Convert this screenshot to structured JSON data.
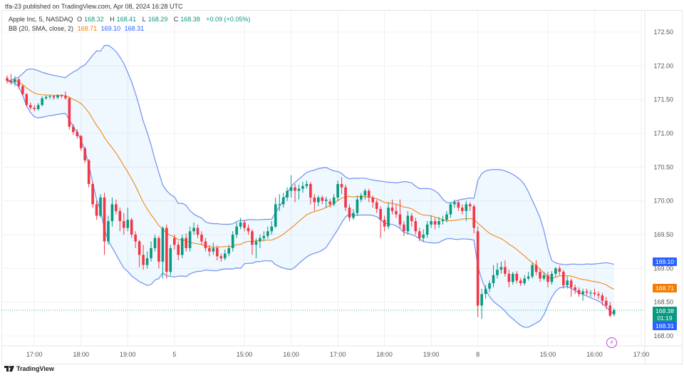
{
  "publisher": "tfa-23 published on TradingView.com, Apr 08, 2024 16:28 UTC",
  "legend": {
    "symbol": "Apple Inc, 5, NASDAQ",
    "o_label": "O",
    "o": "168.32",
    "h_label": "H",
    "h": "168.41",
    "l_label": "L",
    "l": "168.29",
    "c_label": "C",
    "c": "168.38",
    "change": "+0.09 (+0.05%)",
    "bb_label": "BB (20, SMA, close, 2)",
    "bb_basis": "168.71",
    "bb_upper": "169.10",
    "bb_lower": "168.31"
  },
  "price_tags": {
    "upper": "169.10",
    "basis": "168.71",
    "last": "168.38",
    "countdown": "01:19",
    "lower": "168.31"
  },
  "footer": {
    "brand": "TradingView"
  },
  "colors": {
    "up": "#089981",
    "down": "#f23645",
    "basis": "#f57c00",
    "band": "#2962ff",
    "last": "#089981"
  },
  "chart_data": {
    "type": "candlestick",
    "interval": "5",
    "indicator": {
      "name": "BB",
      "length": 20,
      "type": "SMA",
      "source": "close",
      "mult": 2
    },
    "ylim": [
      168.0,
      172.5
    ],
    "yticks": [
      "168.00",
      "168.50",
      "169.00",
      "169.50",
      "170.00",
      "170.50",
      "171.00",
      "171.50",
      "172.00",
      "172.50"
    ],
    "xticks": [
      {
        "label": "17:00",
        "bar": 7
      },
      {
        "label": "18:00",
        "bar": 19
      },
      {
        "label": "19:00",
        "bar": 31
      },
      {
        "label": "5",
        "bar": 43
      },
      {
        "label": "15:00",
        "bar": 61
      },
      {
        "label": "16:00",
        "bar": 73
      },
      {
        "label": "17:00",
        "bar": 85
      },
      {
        "label": "18:00",
        "bar": 97
      },
      {
        "label": "19:00",
        "bar": 109
      },
      {
        "label": "8",
        "bar": 121
      },
      {
        "label": "15:00",
        "bar": 139
      },
      {
        "label": "16:00",
        "bar": 151
      },
      {
        "label": "17:00",
        "bar": 163
      }
    ],
    "last_price": 168.38,
    "grid": true,
    "candles_ohlc": [
      [
        171.82,
        171.86,
        171.74,
        171.78
      ],
      [
        171.78,
        171.88,
        171.72,
        171.76
      ],
      [
        171.76,
        171.85,
        171.7,
        171.8
      ],
      [
        171.8,
        171.82,
        171.66,
        171.7
      ],
      [
        171.7,
        171.72,
        171.55,
        171.58
      ],
      [
        171.58,
        171.6,
        171.4,
        171.42
      ],
      [
        171.42,
        171.46,
        171.35,
        171.38
      ],
      [
        171.38,
        171.42,
        171.33,
        171.36
      ],
      [
        171.36,
        171.45,
        171.34,
        171.42
      ],
      [
        171.42,
        171.55,
        171.4,
        171.52
      ],
      [
        171.52,
        171.56,
        171.5,
        171.54
      ],
      [
        171.54,
        171.57,
        171.51,
        171.55
      ],
      [
        171.55,
        171.57,
        171.5,
        171.53
      ],
      [
        171.53,
        171.58,
        171.51,
        171.56
      ],
      [
        171.56,
        171.58,
        171.52,
        171.55
      ],
      [
        171.55,
        171.62,
        171.5,
        171.52
      ],
      [
        171.52,
        171.54,
        171.06,
        171.1
      ],
      [
        171.1,
        171.14,
        170.98,
        171.02
      ],
      [
        171.02,
        171.06,
        170.92,
        170.96
      ],
      [
        170.96,
        170.98,
        170.74,
        170.78
      ],
      [
        170.78,
        170.8,
        170.56,
        170.6
      ],
      [
        170.6,
        170.62,
        170.2,
        170.25
      ],
      [
        170.25,
        170.28,
        169.9,
        169.95
      ],
      [
        169.95,
        170.0,
        169.72,
        169.78
      ],
      [
        169.78,
        170.1,
        169.75,
        170.05
      ],
      [
        170.05,
        170.12,
        169.2,
        169.4
      ],
      [
        169.4,
        169.78,
        169.35,
        169.7
      ],
      [
        169.7,
        170.05,
        169.62,
        169.95
      ],
      [
        169.95,
        170.02,
        169.8,
        169.85
      ],
      [
        169.85,
        169.9,
        169.55,
        169.7
      ],
      [
        169.7,
        169.82,
        169.5,
        169.6
      ],
      [
        169.6,
        169.9,
        169.55,
        169.72
      ],
      [
        169.72,
        169.75,
        169.45,
        169.5
      ],
      [
        169.5,
        169.55,
        169.3,
        169.4
      ],
      [
        169.4,
        169.42,
        169.02,
        169.2
      ],
      [
        169.2,
        169.35,
        168.98,
        169.05
      ],
      [
        169.05,
        169.25,
        169.0,
        169.15
      ],
      [
        169.15,
        169.4,
        169.1,
        169.3
      ],
      [
        169.3,
        169.5,
        169.25,
        169.45
      ],
      [
        169.45,
        169.48,
        169.0,
        169.1
      ],
      [
        169.1,
        169.62,
        168.85,
        169.6
      ],
      [
        169.6,
        169.65,
        168.85,
        168.95
      ],
      [
        168.95,
        169.35,
        168.9,
        169.3
      ],
      [
        169.45,
        169.5,
        169.28,
        169.35
      ],
      [
        169.35,
        169.4,
        169.12,
        169.2
      ],
      [
        169.2,
        169.5,
        169.15,
        169.45
      ],
      [
        169.45,
        169.52,
        169.25,
        169.3
      ],
      [
        169.3,
        169.62,
        169.25,
        169.55
      ],
      [
        169.55,
        169.68,
        169.5,
        169.6
      ],
      [
        169.6,
        169.65,
        169.45,
        169.5
      ],
      [
        169.5,
        169.55,
        169.35,
        169.4
      ],
      [
        169.4,
        169.45,
        169.25,
        169.3
      ],
      [
        169.3,
        169.35,
        169.18,
        169.25
      ],
      [
        169.25,
        169.38,
        169.2,
        169.3
      ],
      [
        169.3,
        169.34,
        169.12,
        169.18
      ],
      [
        169.18,
        169.22,
        169.1,
        169.15
      ],
      [
        169.15,
        169.28,
        169.12,
        169.22
      ],
      [
        169.22,
        169.35,
        169.18,
        169.3
      ],
      [
        169.3,
        169.55,
        169.25,
        169.5
      ],
      [
        169.5,
        169.68,
        169.45,
        169.62
      ],
      [
        169.62,
        169.75,
        169.58,
        169.68
      ],
      [
        169.68,
        169.72,
        169.55,
        169.6
      ],
      [
        169.6,
        169.65,
        169.5,
        169.55
      ],
      [
        169.55,
        169.58,
        169.2,
        169.35
      ],
      [
        169.35,
        169.45,
        169.15,
        169.4
      ],
      [
        169.4,
        169.5,
        169.3,
        169.45
      ],
      [
        169.45,
        169.55,
        169.4,
        169.48
      ],
      [
        169.48,
        169.62,
        169.44,
        169.55
      ],
      [
        169.55,
        169.7,
        169.5,
        169.62
      ],
      [
        169.62,
        170.05,
        169.6,
        169.95
      ],
      [
        169.95,
        170.1,
        169.85,
        169.95
      ],
      [
        169.95,
        170.12,
        169.9,
        170.05
      ],
      [
        170.05,
        170.2,
        170.0,
        170.15
      ],
      [
        170.15,
        170.38,
        170.05,
        170.2
      ],
      [
        170.2,
        170.25,
        169.98,
        170.15
      ],
      [
        170.15,
        170.24,
        170.02,
        170.18
      ],
      [
        170.18,
        170.28,
        170.12,
        170.22
      ],
      [
        170.22,
        170.3,
        170.18,
        170.25
      ],
      [
        170.25,
        170.28,
        169.95,
        170.05
      ],
      [
        170.05,
        170.1,
        169.85,
        169.98
      ],
      [
        169.98,
        170.08,
        169.92,
        170.05
      ],
      [
        170.05,
        170.08,
        169.95,
        170.0
      ],
      [
        170.0,
        170.06,
        169.9,
        170.02
      ],
      [
        169.99,
        170.03,
        169.9,
        169.95
      ],
      [
        169.95,
        170.1,
        169.92,
        170.05
      ],
      [
        170.05,
        170.3,
        170.0,
        170.25
      ],
      [
        170.25,
        170.35,
        170.1,
        170.2
      ],
      [
        170.2,
        170.24,
        169.85,
        169.9
      ],
      [
        169.9,
        169.95,
        169.7,
        169.75
      ],
      [
        169.75,
        169.88,
        169.72,
        169.82
      ],
      [
        169.82,
        170.08,
        169.78,
        170.02
      ],
      [
        170.02,
        170.12,
        169.98,
        170.08
      ],
      [
        170.08,
        170.18,
        170.02,
        170.15
      ],
      [
        170.15,
        170.18,
        169.98,
        170.05
      ],
      [
        170.05,
        170.08,
        169.9,
        169.98
      ],
      [
        169.98,
        170.02,
        169.82,
        169.88
      ],
      [
        169.88,
        169.92,
        169.45,
        169.72
      ],
      [
        169.72,
        169.78,
        169.55,
        169.62
      ],
      [
        169.62,
        169.98,
        169.58,
        169.9
      ],
      [
        169.9,
        170.02,
        169.8,
        169.85
      ],
      [
        169.85,
        169.95,
        169.75,
        169.8
      ],
      [
        169.8,
        170.02,
        169.6,
        169.65
      ],
      [
        169.65,
        169.7,
        169.48,
        169.55
      ],
      [
        169.55,
        169.85,
        169.5,
        169.78
      ],
      [
        169.78,
        169.82,
        169.62,
        169.7
      ],
      [
        169.7,
        169.75,
        169.5,
        169.55
      ],
      [
        169.55,
        169.6,
        169.4,
        169.45
      ],
      [
        169.45,
        169.58,
        169.4,
        169.5
      ],
      [
        169.5,
        169.7,
        169.45,
        169.65
      ],
      [
        169.65,
        169.78,
        169.6,
        169.7
      ],
      [
        169.7,
        169.75,
        169.58,
        169.65
      ],
      [
        169.65,
        169.76,
        169.6,
        169.7
      ],
      [
        169.7,
        169.78,
        169.65,
        169.72
      ],
      [
        169.72,
        169.85,
        169.68,
        169.8
      ],
      [
        169.8,
        169.98,
        169.75,
        169.95
      ],
      [
        169.95,
        170.02,
        169.9,
        169.98
      ],
      [
        169.98,
        170.0,
        169.85,
        169.9
      ],
      [
        169.9,
        169.95,
        169.8,
        169.85
      ],
      [
        169.85,
        170.0,
        169.7,
        169.95
      ],
      [
        169.95,
        169.98,
        169.85,
        169.92
      ],
      [
        169.92,
        169.95,
        169.52,
        169.6
      ],
      [
        169.55,
        169.62,
        168.28,
        168.45
      ],
      [
        168.45,
        168.7,
        168.25,
        168.62
      ],
      [
        168.62,
        168.75,
        168.55,
        168.7
      ],
      [
        168.7,
        168.82,
        168.65,
        168.78
      ],
      [
        168.78,
        169.05,
        168.72,
        168.9
      ],
      [
        168.9,
        169.08,
        168.85,
        168.98
      ],
      [
        168.98,
        169.1,
        168.92,
        169.02
      ],
      [
        169.02,
        169.12,
        168.88,
        168.92
      ],
      [
        168.92,
        168.98,
        168.72,
        168.8
      ],
      [
        168.8,
        168.95,
        168.76,
        168.92
      ],
      [
        168.92,
        168.96,
        168.78,
        168.82
      ],
      [
        168.82,
        168.86,
        168.74,
        168.78
      ],
      [
        168.78,
        168.9,
        168.75,
        168.85
      ],
      [
        168.85,
        168.95,
        168.82,
        168.88
      ],
      [
        168.88,
        169.08,
        168.85,
        169.05
      ],
      [
        169.05,
        169.12,
        168.9,
        168.95
      ],
      [
        168.95,
        169.0,
        168.8,
        168.85
      ],
      [
        168.85,
        168.95,
        168.82,
        168.9
      ],
      [
        168.9,
        168.95,
        168.72,
        168.8
      ],
      [
        168.8,
        168.96,
        168.76,
        168.92
      ],
      [
        168.92,
        169.02,
        168.88,
        169.0
      ],
      [
        169.0,
        169.04,
        168.9,
        168.95
      ],
      [
        168.95,
        168.98,
        168.7,
        168.75
      ],
      [
        168.75,
        168.88,
        168.7,
        168.82
      ],
      [
        168.82,
        168.85,
        168.58,
        168.72
      ],
      [
        168.72,
        168.76,
        168.62,
        168.68
      ],
      [
        168.68,
        168.72,
        168.58,
        168.62
      ],
      [
        168.62,
        168.7,
        168.52,
        168.66
      ],
      [
        168.66,
        168.7,
        168.6,
        168.64
      ],
      [
        168.64,
        168.68,
        168.58,
        168.64
      ],
      [
        168.64,
        168.7,
        168.58,
        168.62
      ],
      [
        168.62,
        168.66,
        168.55,
        168.6
      ],
      [
        168.6,
        168.64,
        168.45,
        168.52
      ],
      [
        168.52,
        168.58,
        168.4,
        168.45
      ],
      [
        168.45,
        168.5,
        168.28,
        168.3
      ],
      [
        168.32,
        168.41,
        168.29,
        168.38
      ]
    ]
  }
}
